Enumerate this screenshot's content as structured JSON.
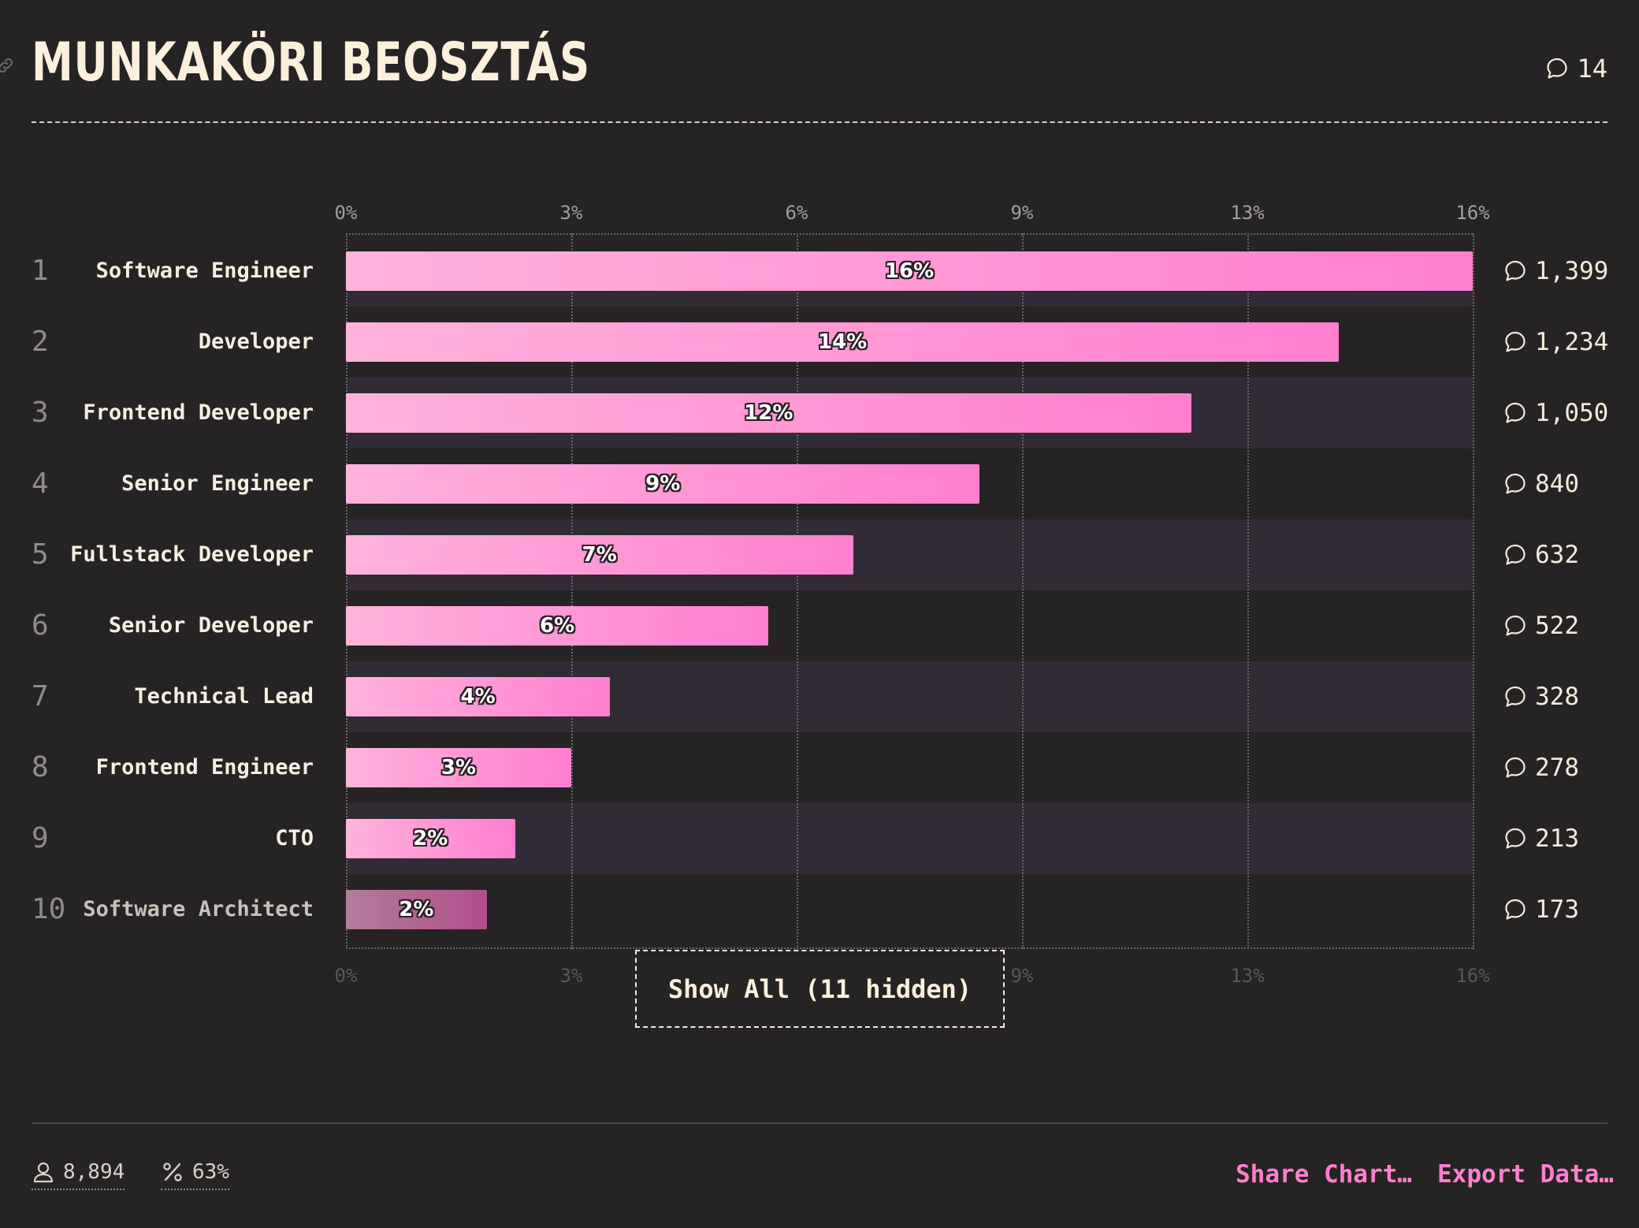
{
  "title": "MUNKAKÖRI BEOSZTÁS",
  "title_comments": "14",
  "chart_data": {
    "type": "bar",
    "orientation": "horizontal",
    "axis_ticks": [
      "0%",
      "3%",
      "6%",
      "9%",
      "13%",
      "16%"
    ],
    "xlim": [
      0,
      16
    ],
    "grid": true,
    "rows": [
      {
        "rank": "1",
        "label": "Software Engineer",
        "value": 16,
        "value_label": "16%",
        "count": "1,399"
      },
      {
        "rank": "2",
        "label": "Developer",
        "value": 14.1,
        "value_label": "14%",
        "count": "1,234"
      },
      {
        "rank": "3",
        "label": "Frontend Developer",
        "value": 12,
        "value_label": "12%",
        "count": "1,050"
      },
      {
        "rank": "4",
        "label": "Senior Engineer",
        "value": 9,
        "value_label": "9%",
        "count": "840"
      },
      {
        "rank": "5",
        "label": "Fullstack Developer",
        "value": 7.2,
        "value_label": "7%",
        "count": "632"
      },
      {
        "rank": "6",
        "label": "Senior Developer",
        "value": 6,
        "value_label": "6%",
        "count": "522"
      },
      {
        "rank": "7",
        "label": "Technical Lead",
        "value": 3.75,
        "value_label": "4%",
        "count": "328"
      },
      {
        "rank": "8",
        "label": "Frontend Engineer",
        "value": 3.2,
        "value_label": "3%",
        "count": "278"
      },
      {
        "rank": "9",
        "label": "CTO",
        "value": 2.4,
        "value_label": "2%",
        "count": "213"
      },
      {
        "rank": "10",
        "label": "Software Architect",
        "value": 2,
        "value_label": "2%",
        "count": "173",
        "dimmed": true
      }
    ]
  },
  "show_all_label": "Show All (11 hidden)",
  "footer": {
    "respondents": "8,894",
    "percentage": "63%",
    "share_label": "Share Chart…",
    "export_label": "Export Data…"
  },
  "colors": {
    "accent": "#ff7fcf",
    "background": "#262324",
    "band": "#302b34"
  },
  "icons": {
    "title_link": "link-icon",
    "comment": "speech-bubble-icon",
    "user": "user-icon",
    "percent": "percent-icon"
  }
}
